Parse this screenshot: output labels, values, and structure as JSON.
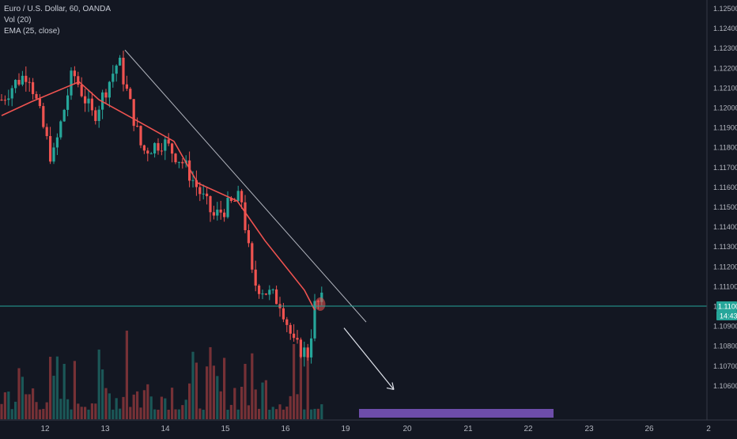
{
  "legend": {
    "symbol_line": "Euro / U.S. Dollar, 60, OANDA",
    "volume_line": "Vol (20)",
    "ema_line": "EMA (25, close)"
  },
  "price_axis": {
    "ticks": [
      "1.12500",
      "1.12400",
      "1.12300",
      "1.12200",
      "1.12100",
      "1.12000",
      "1.11900",
      "1.11800",
      "1.11700",
      "1.11600",
      "1.11500",
      "1.11400",
      "1.11300",
      "1.11200",
      "1.11100",
      "1.11000",
      "1.10900",
      "1.10800",
      "1.10700",
      "1.10600"
    ],
    "current_price_label": "1.11000",
    "countdown_label": "14:43"
  },
  "time_axis": {
    "ticks": [
      "12",
      "13",
      "14",
      "15",
      "16",
      "19",
      "20",
      "21",
      "22",
      "23",
      "26"
    ],
    "trailing_label": "2"
  },
  "colors": {
    "background": "#131722",
    "up": "#26a69a",
    "down": "#ef5350",
    "ema": "#ef5350",
    "price_line": "#26a69a",
    "trendline": "#b2b5be",
    "target_zone": "#7e57c2",
    "axis_text": "#b2b5be",
    "grid": "#1e222d"
  },
  "chart_data": {
    "type": "candlestick",
    "instrument": "EUR/USD",
    "timeframe": "60",
    "source": "OANDA",
    "ylim": [
      1.1053,
      1.1253
    ],
    "y_ticks": [
      1.125,
      1.124,
      1.123,
      1.122,
      1.121,
      1.12,
      1.119,
      1.118,
      1.117,
      1.116,
      1.115,
      1.114,
      1.113,
      1.112,
      1.111,
      1.11,
      1.109,
      1.108,
      1.107,
      1.106
    ],
    "grid": false,
    "last_price": 1.11,
    "price_path_daily": [
      {
        "day": "12",
        "value": 1.1204
      },
      {
        "day": "12",
        "value": 1.1218
      },
      {
        "day": "12",
        "value": 1.1173
      },
      {
        "day": "13",
        "value": 1.1218
      },
      {
        "day": "13",
        "value": 1.1195
      },
      {
        "day": "13",
        "value": 1.1224
      },
      {
        "day": "14",
        "value": 1.1178
      },
      {
        "day": "14",
        "value": 1.1183
      },
      {
        "day": "14",
        "value": 1.1145
      },
      {
        "day": "15",
        "value": 1.1155
      },
      {
        "day": "15",
        "value": 1.1112
      },
      {
        "day": "16",
        "value": 1.1102
      },
      {
        "day": "16",
        "value": 1.1076
      },
      {
        "day": "16",
        "value": 1.11
      }
    ],
    "ema_path": [
      {
        "day": "12",
        "value": 1.1196
      },
      {
        "day": "12",
        "value": 1.1203
      },
      {
        "day": "13",
        "value": 1.1213
      },
      {
        "day": "13",
        "value": 1.1204
      },
      {
        "day": "13",
        "value": 1.1193
      },
      {
        "day": "14",
        "value": 1.1183
      },
      {
        "day": "14",
        "value": 1.1162
      },
      {
        "day": "15",
        "value": 1.1153
      },
      {
        "day": "15",
        "value": 1.1133
      },
      {
        "day": "16",
        "value": 1.1108
      },
      {
        "day": "16",
        "value": 1.1098
      }
    ],
    "annotations": [
      {
        "type": "descending_trendline",
        "from": {
          "day": "13",
          "price": 1.1229
        },
        "to": {
          "day": "19",
          "price": 1.1092
        }
      },
      {
        "type": "arrow_down",
        "from": {
          "day": "19",
          "price": 1.1089
        },
        "to": {
          "day": "20",
          "price": 1.1058
        }
      },
      {
        "type": "target_zone",
        "from_day": "19",
        "to_day": "22",
        "price_low": 1.1054,
        "price_high": 1.1056
      },
      {
        "type": "ellipse_marker",
        "day": "16",
        "price": 1.1101
      }
    ]
  }
}
